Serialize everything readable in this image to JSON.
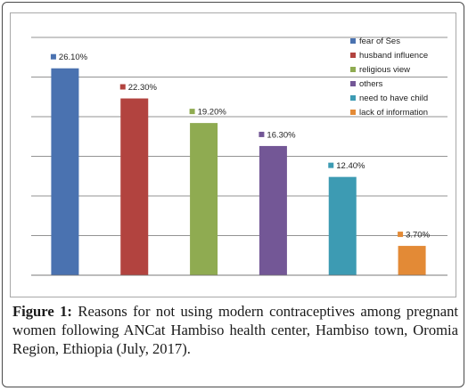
{
  "chart_data": {
    "type": "bar",
    "categories": [
      "fear of Ses",
      "husband influence",
      "religious view",
      "others",
      "need to have child",
      "lack of information"
    ],
    "values": [
      26.1,
      22.3,
      19.2,
      16.3,
      12.4,
      3.7
    ],
    "data_labels": [
      "26.10%",
      "22.30%",
      "19.20%",
      "16.30%",
      "12.40%",
      "3.70%"
    ],
    "colors": [
      "#4a72b0",
      "#b2433f",
      "#8fab51",
      "#735796",
      "#3d9bb3",
      "#e38a36"
    ],
    "ylim": [
      0,
      30
    ],
    "grid": true,
    "legend_position": "top-right",
    "title": "",
    "xlabel": "",
    "ylabel": ""
  },
  "caption": {
    "label": "Figure 1:",
    "text": " Reasons for not using modern contraceptives among pregnant women following ANCat Hambiso health center, Hambiso town, Oromia Region, Ethiopia (July, 2017)."
  }
}
